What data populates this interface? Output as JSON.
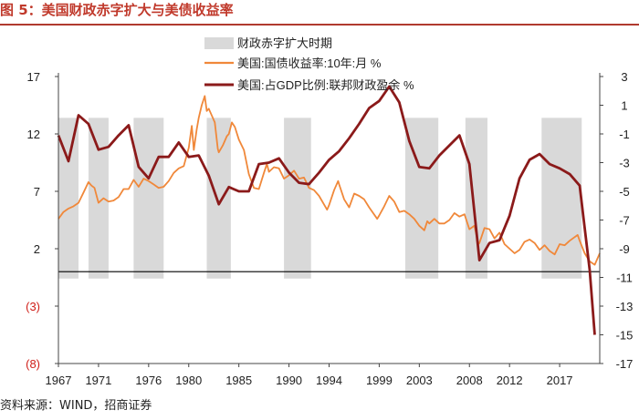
{
  "figure": {
    "title": "图 5：美国财政赤字扩大与美债收益率",
    "source": "资料来源：WIND，招商证券"
  },
  "chart_data": {
    "type": "line",
    "x_ticks": [
      "1967",
      "1971",
      "1976",
      "1980",
      "1985",
      "1990",
      "1994",
      "1999",
      "2003",
      "2008",
      "2012",
      "2017"
    ],
    "xlim": [
      1967,
      2021
    ],
    "left_axis": {
      "label": "美国:国债收益率:10年:月 %",
      "ylim": [
        -8,
        17
      ],
      "ticks": [
        {
          "value": 17,
          "label": "17"
        },
        {
          "value": 12,
          "label": "12"
        },
        {
          "value": 7,
          "label": "7"
        },
        {
          "value": 2,
          "label": "2"
        },
        {
          "value": -3,
          "label": "(3)"
        },
        {
          "value": -8,
          "label": "(8)"
        }
      ]
    },
    "right_axis": {
      "label": "美国:占GDP比例:联邦财政盈余 %",
      "ylim": [
        -17,
        3
      ],
      "ticks": [
        {
          "value": 3,
          "label": "3"
        },
        {
          "value": 1,
          "label": "1"
        },
        {
          "value": -1,
          "label": "-1"
        },
        {
          "value": -3,
          "label": "-3"
        },
        {
          "value": -5,
          "label": "-5"
        },
        {
          "value": -7,
          "label": "-7"
        },
        {
          "value": -9,
          "label": "-9"
        },
        {
          "value": -11,
          "label": "-11"
        },
        {
          "value": -13,
          "label": "-13"
        },
        {
          "value": -15,
          "label": "-15"
        },
        {
          "value": -17,
          "label": "-17"
        }
      ]
    },
    "zero_line": 0,
    "shaded_periods": {
      "name": "财政赤字扩大时期",
      "color": "#d9d9d9",
      "y_range": [
        -0.6,
        13.4
      ],
      "periods": [
        [
          1967,
          1969
        ],
        [
          1970,
          1972
        ],
        [
          1974.5,
          1977.5
        ],
        [
          1981.8,
          1984.2
        ],
        [
          1989.5,
          1992.2
        ],
        [
          2001.6,
          2004.9
        ],
        [
          2007.6,
          2009.8
        ],
        [
          2015.2,
          2019.2
        ]
      ]
    },
    "series": [
      {
        "name": "美国:国债收益率:10年:月 %",
        "axis": "left",
        "color": "#f0883a",
        "points": [
          [
            1967,
            4.6
          ],
          [
            1967.5,
            5.2
          ],
          [
            1968,
            5.5
          ],
          [
            1968.5,
            5.7
          ],
          [
            1969,
            6.0
          ],
          [
            1969.5,
            6.9
          ],
          [
            1970,
            7.8
          ],
          [
            1970.3,
            7.5
          ],
          [
            1970.6,
            7.3
          ],
          [
            1971,
            6.0
          ],
          [
            1971.5,
            6.4
          ],
          [
            1972,
            6.1
          ],
          [
            1972.5,
            6.2
          ],
          [
            1973,
            6.5
          ],
          [
            1973.5,
            7.2
          ],
          [
            1974,
            7.2
          ],
          [
            1974.5,
            8.0
          ],
          [
            1975,
            7.4
          ],
          [
            1975.5,
            8.1
          ],
          [
            1976,
            7.9
          ],
          [
            1976.5,
            7.6
          ],
          [
            1977,
            7.3
          ],
          [
            1977.5,
            7.4
          ],
          [
            1978,
            7.9
          ],
          [
            1978.5,
            8.6
          ],
          [
            1979,
            9.0
          ],
          [
            1979.5,
            9.2
          ],
          [
            1980,
            10.8
          ],
          [
            1980.3,
            12.7
          ],
          [
            1980.5,
            10.6
          ],
          [
            1980.8,
            12.4
          ],
          [
            1981,
            13.4
          ],
          [
            1981.3,
            14.5
          ],
          [
            1981.6,
            15.3
          ],
          [
            1981.8,
            14.0
          ],
          [
            1982,
            14.2
          ],
          [
            1982.3,
            13.6
          ],
          [
            1982.6,
            13.0
          ],
          [
            1982.9,
            10.7
          ],
          [
            1983,
            10.4
          ],
          [
            1983.4,
            11.0
          ],
          [
            1983.8,
            11.8
          ],
          [
            1984,
            12.0
          ],
          [
            1984.3,
            13.0
          ],
          [
            1984.6,
            12.6
          ],
          [
            1985,
            11.5
          ],
          [
            1985.5,
            10.6
          ],
          [
            1986,
            8.5
          ],
          [
            1986.5,
            7.3
          ],
          [
            1987,
            7.2
          ],
          [
            1987.5,
            8.6
          ],
          [
            1987.8,
            9.4
          ],
          [
            1988,
            8.7
          ],
          [
            1988.5,
            9.1
          ],
          [
            1989,
            9.0
          ],
          [
            1989.5,
            8.1
          ],
          [
            1990,
            8.4
          ],
          [
            1990.5,
            8.8
          ],
          [
            1991,
            8.1
          ],
          [
            1991.5,
            8.2
          ],
          [
            1992,
            7.3
          ],
          [
            1992.5,
            7.1
          ],
          [
            1993,
            6.6
          ],
          [
            1993.8,
            5.4
          ],
          [
            1994,
            5.8
          ],
          [
            1994.5,
            7.1
          ],
          [
            1994.9,
            7.9
          ],
          [
            1995,
            7.6
          ],
          [
            1995.5,
            6.3
          ],
          [
            1996,
            5.6
          ],
          [
            1996.5,
            6.8
          ],
          [
            1997,
            6.6
          ],
          [
            1997.5,
            6.3
          ],
          [
            1998,
            5.6
          ],
          [
            1998.8,
            4.6
          ],
          [
            1999,
            4.9
          ],
          [
            1999.5,
            5.7
          ],
          [
            2000,
            6.6
          ],
          [
            2000.5,
            6.1
          ],
          [
            2001,
            5.2
          ],
          [
            2001.5,
            5.3
          ],
          [
            2002,
            5.0
          ],
          [
            2002.5,
            4.6
          ],
          [
            2003,
            4.0
          ],
          [
            2003.5,
            3.6
          ],
          [
            2003.8,
            4.4
          ],
          [
            2004,
            4.2
          ],
          [
            2004.5,
            4.6
          ],
          [
            2005,
            4.2
          ],
          [
            2005.5,
            4.2
          ],
          [
            2006,
            4.5
          ],
          [
            2006.5,
            5.1
          ],
          [
            2007,
            4.8
          ],
          [
            2007.5,
            5.0
          ],
          [
            2008,
            3.7
          ],
          [
            2008.5,
            4.0
          ],
          [
            2008.9,
            2.4
          ],
          [
            2009,
            2.5
          ],
          [
            2009.5,
            3.8
          ],
          [
            2010,
            3.7
          ],
          [
            2010.5,
            2.9
          ],
          [
            2011,
            3.4
          ],
          [
            2011.5,
            2.4
          ],
          [
            2012,
            2.0
          ],
          [
            2012.5,
            1.6
          ],
          [
            2013,
            1.9
          ],
          [
            2013.5,
            2.6
          ],
          [
            2014,
            2.8
          ],
          [
            2014.5,
            2.5
          ],
          [
            2015,
            1.9
          ],
          [
            2015.5,
            2.3
          ],
          [
            2016,
            1.8
          ],
          [
            2016.5,
            1.5
          ],
          [
            2017,
            2.4
          ],
          [
            2017.5,
            2.3
          ],
          [
            2018,
            2.7
          ],
          [
            2018.8,
            3.2
          ],
          [
            2019,
            2.7
          ],
          [
            2019.5,
            1.6
          ],
          [
            2020,
            0.9
          ],
          [
            2020.5,
            0.6
          ],
          [
            2021,
            1.6
          ]
        ]
      },
      {
        "name": "美国:占GDP比例:联邦财政盈余 %",
        "axis": "right",
        "color": "#8b1a1a",
        "points": [
          [
            1967,
            -1.1
          ],
          [
            1968,
            -2.9
          ],
          [
            1969,
            0.3
          ],
          [
            1970,
            -0.3
          ],
          [
            1971,
            -2.1
          ],
          [
            1972,
            -1.9
          ],
          [
            1973,
            -1.1
          ],
          [
            1974,
            -0.4
          ],
          [
            1975,
            -3.3
          ],
          [
            1976,
            -4.1
          ],
          [
            1977,
            -2.6
          ],
          [
            1978,
            -2.6
          ],
          [
            1979,
            -1.6
          ],
          [
            1980,
            -2.6
          ],
          [
            1981,
            -2.5
          ],
          [
            1982,
            -3.9
          ],
          [
            1983,
            -5.9
          ],
          [
            1984,
            -4.7
          ],
          [
            1985,
            -5.0
          ],
          [
            1986,
            -5.0
          ],
          [
            1987,
            -3.1
          ],
          [
            1988,
            -3.0
          ],
          [
            1989,
            -2.7
          ],
          [
            1990,
            -3.7
          ],
          [
            1991,
            -4.4
          ],
          [
            1992,
            -4.5
          ],
          [
            1993,
            -3.7
          ],
          [
            1994,
            -2.8
          ],
          [
            1995,
            -2.2
          ],
          [
            1996,
            -1.3
          ],
          [
            1997,
            -0.3
          ],
          [
            1998,
            0.8
          ],
          [
            1999,
            1.3
          ],
          [
            2000,
            2.3
          ],
          [
            2001,
            1.2
          ],
          [
            2002,
            -1.5
          ],
          [
            2003,
            -3.3
          ],
          [
            2004,
            -3.4
          ],
          [
            2005,
            -2.5
          ],
          [
            2006,
            -1.8
          ],
          [
            2007,
            -1.1
          ],
          [
            2008,
            -3.1
          ],
          [
            2009,
            -9.8
          ],
          [
            2010,
            -8.6
          ],
          [
            2011,
            -8.4
          ],
          [
            2012,
            -6.7
          ],
          [
            2013,
            -4.1
          ],
          [
            2014,
            -2.8
          ],
          [
            2015,
            -2.4
          ],
          [
            2016,
            -3.1
          ],
          [
            2017,
            -3.4
          ],
          [
            2018,
            -3.8
          ],
          [
            2019,
            -4.6
          ],
          [
            2020,
            -10.5
          ],
          [
            2020.5,
            -15.0
          ]
        ]
      }
    ]
  }
}
